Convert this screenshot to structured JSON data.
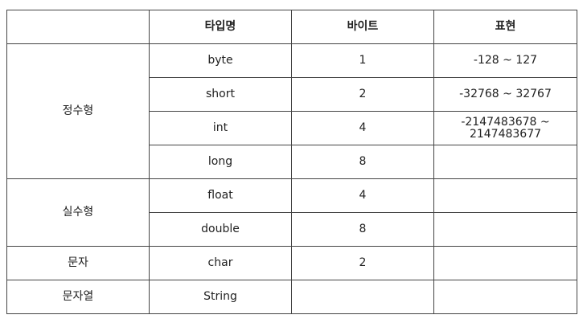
{
  "table": {
    "headers": [
      "",
      "타입명",
      "바이트",
      "표현"
    ],
    "groups": [
      {
        "category": "정수형",
        "rows": [
          {
            "type": "byte",
            "bytes": "1",
            "range": "-128 ~ 127"
          },
          {
            "type": "short",
            "bytes": "2",
            "range": "-32768 ~ 32767"
          },
          {
            "type": "int",
            "bytes": "4",
            "range": "-2147483678 ~ 2147483677"
          },
          {
            "type": "long",
            "bytes": "8",
            "range": ""
          }
        ]
      },
      {
        "category": "실수형",
        "rows": [
          {
            "type": "float",
            "bytes": "4",
            "range": ""
          },
          {
            "type": "double",
            "bytes": "8",
            "range": ""
          }
        ]
      },
      {
        "category": "문자",
        "rows": [
          {
            "type": "char",
            "bytes": "2",
            "range": ""
          }
        ]
      },
      {
        "category": "문자열",
        "rows": [
          {
            "type": "String",
            "bytes": "",
            "range": ""
          }
        ]
      }
    ]
  }
}
